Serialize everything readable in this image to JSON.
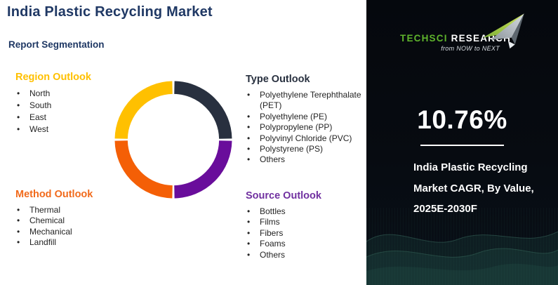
{
  "page": {
    "title": "India Plastic Recycling Market",
    "subtitle": "Report Segmentation"
  },
  "sections": {
    "region": {
      "heading": "Region Outlook",
      "color": "#FFC000",
      "items": [
        "North",
        "South",
        "East",
        "West"
      ]
    },
    "type": {
      "heading": "Type Outlook",
      "color": "#28303F",
      "items": [
        "Polyethylene Terephthalate (PET)",
        "Polyethylene (PE)",
        "Polypropylene (PP)",
        "Polyvinyl Chloride (PVC)",
        "Polystyrene (PS)",
        "Others"
      ]
    },
    "method": {
      "heading": "Method Outlook",
      "color": "#F16A1B",
      "items": [
        "Thermal",
        "Chemical",
        "Mechanical",
        "Landfill"
      ]
    },
    "source": {
      "heading": "Source Outlook",
      "color": "#7030A0",
      "items": [
        "Bottles",
        "Films",
        "Fibers",
        "Foams",
        "Others"
      ]
    }
  },
  "chart_data": {
    "type": "pie",
    "style": "donut",
    "values": [
      25,
      25,
      25,
      25
    ],
    "colors": [
      "#28303F",
      "#690D9B",
      "#F45F06",
      "#FFC000"
    ],
    "labels": [],
    "title": "",
    "legend_position": "none",
    "start_angle_deg": 0,
    "clockwise": true,
    "inner_radius_ratio": 0.78
  },
  "panel": {
    "logo": {
      "brand_left": "TechSci",
      "brand_right": "Research",
      "tagline": "from NOW to NEXT",
      "green": "#5fb42c"
    },
    "stat_value": "10.76%",
    "caption": {
      "line1": "India Plastic Recycling",
      "line2": "Market CAGR, By Value,",
      "line3": "2025E-2030F"
    }
  }
}
